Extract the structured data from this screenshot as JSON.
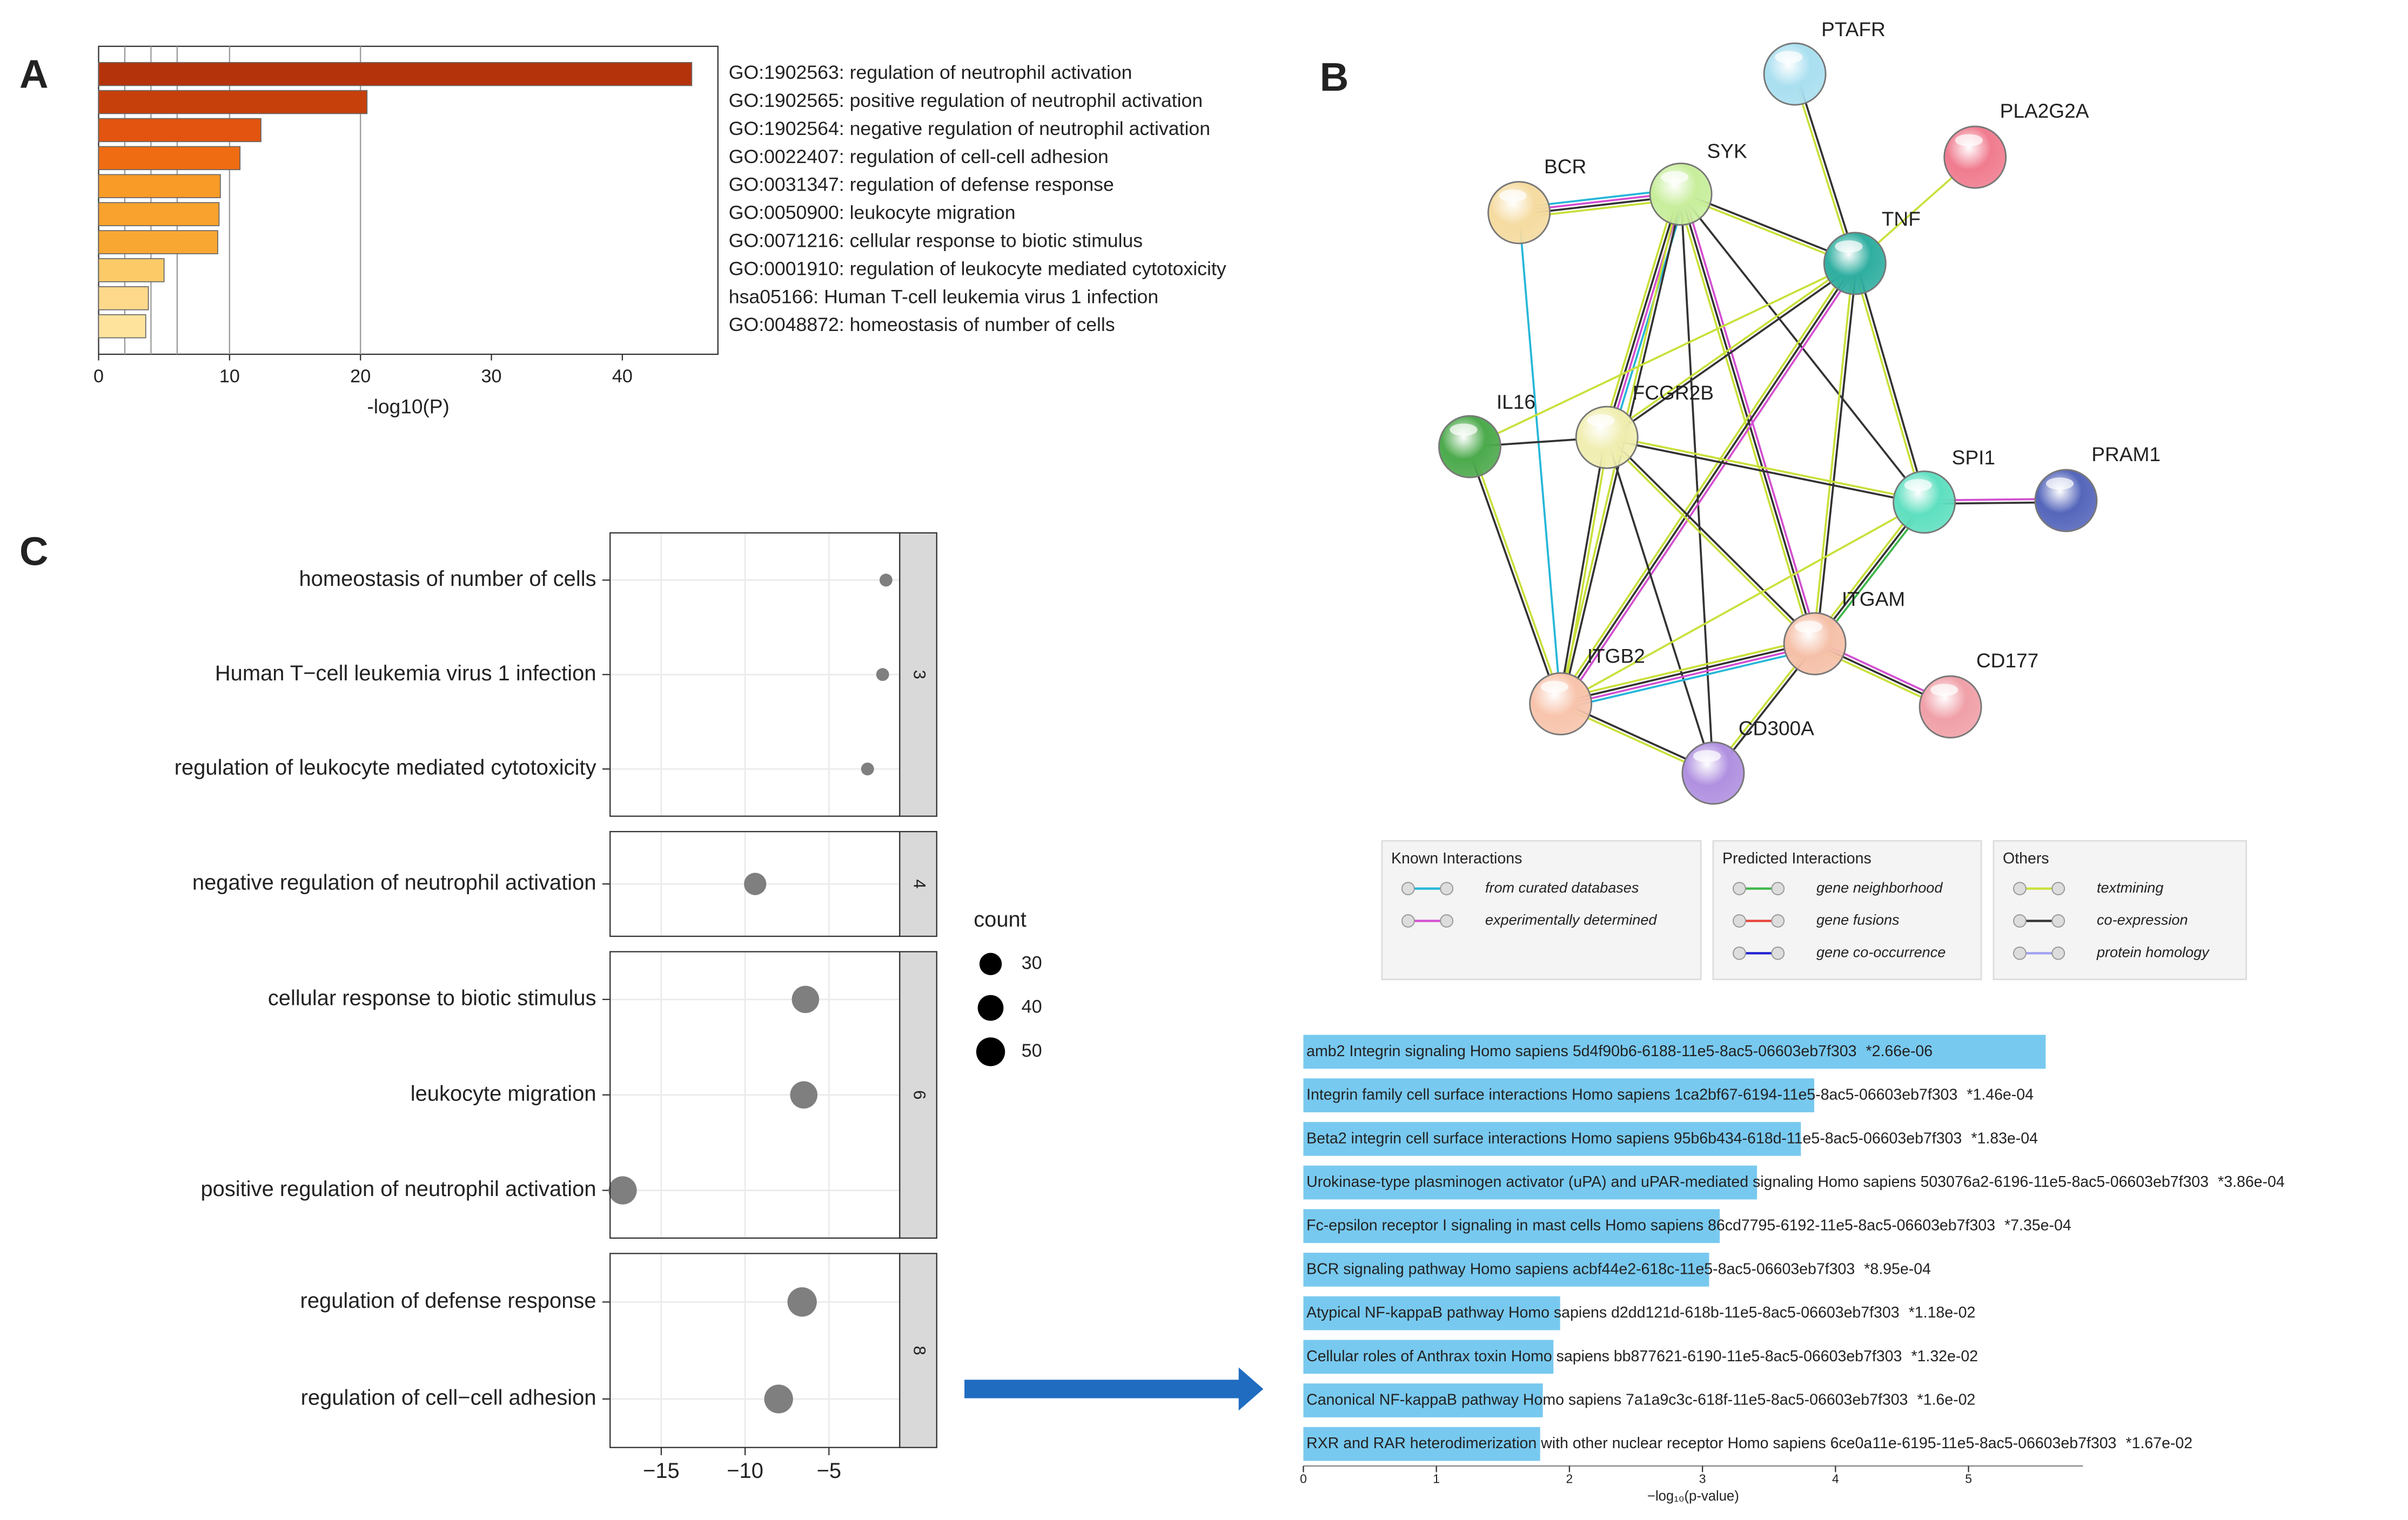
{
  "chart_data": [
    {
      "type": "bar",
      "panel_label": "A",
      "categories": [
        "GO:1902563: regulation of neutrophil activation",
        "GO:1902565: positive regulation of neutrophil activation",
        "GO:1902564: negative regulation of neutrophil activation",
        "GO:0022407: regulation of cell-cell adhesion",
        "GO:0031347: regulation of defense response",
        "GO:0050900: leukocyte migration",
        "GO:0071216: cellular response to biotic stimulus",
        "GO:0001910: regulation of leukocyte mediated cytotoxicity",
        "hsa05166: Human T-cell leukemia virus 1 infection",
        "GO:0048872: homeostasis of number of cells"
      ],
      "values": [
        45.3,
        20.5,
        12.4,
        10.8,
        9.3,
        9.2,
        9.1,
        5.0,
        3.8,
        3.6
      ],
      "colors": [
        "#b5330b",
        "#c6400c",
        "#e2540f",
        "#f06c12",
        "#f89b27",
        "#f9a22e",
        "#f9a733",
        "#fdca68",
        "#fed98c",
        "#fee39d"
      ],
      "xlabel": "-log10(P)",
      "xlim": [
        0,
        47.3
      ],
      "xticks": [
        0,
        10,
        20,
        30,
        40
      ],
      "reference_lines": [
        2,
        4,
        6,
        10,
        20
      ]
    },
    {
      "type": "network",
      "panel_label": "B",
      "nodes": [
        "PTAFR",
        "PLA2G2A",
        "BCR",
        "SYK",
        "TNF",
        "IL16",
        "FCGR2B",
        "SPI1",
        "PRAM1",
        "ITGAM",
        "CD177",
        "ITGB2",
        "CD300A"
      ],
      "colors": [
        "#a9dff0",
        "#f07c8f",
        "#f5dba0",
        "#c8ee9c",
        "#2faea0",
        "#4caa4c",
        "#f0eeb0",
        "#5fe0c0",
        "#5566bb",
        "#f5c0a8",
        "#f0a0a8",
        "#f8c4ac",
        "#b090e0"
      ],
      "legend": [
        {
          "title": "Known Interactions",
          "items": [
            {
              "label": "from curated databases",
              "color": "#26b6d8"
            },
            {
              "label": "experimentally determined",
              "color": "#d34fd0"
            }
          ]
        },
        {
          "title": "Predicted Interactions",
          "items": [
            {
              "label": "gene neighborhood",
              "color": "#3db54a"
            },
            {
              "label": "gene fusions",
              "color": "#e8443a"
            },
            {
              "label": "gene co-occurrence",
              "color": "#2020d0"
            }
          ]
        },
        {
          "title": "Others",
          "items": [
            {
              "label": "textmining",
              "color": "#c9e03a"
            },
            {
              "label": "co-expression",
              "color": "#333333"
            },
            {
              "label": "protein homology",
              "color": "#a0a0f0"
            }
          ]
        }
      ]
    },
    {
      "type": "dot",
      "panel_label": "C",
      "color": "#7f7f7f",
      "facets": [
        {
          "name": "3",
          "categories": [
            "homeostasis of number of cells",
            "Human T−cell leukemia virus 1 infection",
            "regulation of leukocyte mediated cytotoxicity"
          ],
          "values": [
            -1.6,
            -1.8,
            -2.7
          ],
          "sizes": [
            10,
            10,
            10
          ]
        },
        {
          "name": "4",
          "categories": [
            "negative regulation of neutrophil activation"
          ],
          "values": [
            -9.4
          ],
          "sizes": [
            30
          ]
        },
        {
          "name": "6",
          "categories": [
            "cellular response to biotic stimulus",
            "leukocyte migration",
            "positive regulation of neutrophil activation"
          ],
          "values": [
            -6.4,
            -6.5,
            -17.3
          ],
          "sizes": [
            45,
            45,
            48
          ]
        },
        {
          "name": "8",
          "categories": [
            "regulation of defense response",
            "regulation of cell−cell adhesion"
          ],
          "values": [
            -6.6,
            -8.0
          ],
          "sizes": [
            52,
            50
          ]
        }
      ],
      "xlim": [
        -18.05,
        -0.78
      ],
      "xticks": [
        {
          "value": -15,
          "label": "−15"
        },
        {
          "value": -10,
          "label": "−10"
        },
        {
          "value": -5,
          "label": "−5"
        }
      ],
      "size_legend": {
        "title": "count",
        "values": [
          30,
          40,
          50
        ]
      }
    },
    {
      "type": "bar",
      "color": "#78c9ef",
      "categories": [
        "amb2 Integrin signaling Homo sapiens 5d4f90b6-6188-11e5-8ac5-06603eb7f303",
        "Integrin family cell surface interactions Homo sapiens 1ca2bf67-6194-11e5-8ac5-06603eb7f303",
        "Beta2 integrin cell surface interactions Homo sapiens 95b6b434-618d-11e5-8ac5-06603eb7f303",
        "Urokinase-type plasminogen activator (uPA) and uPAR-mediated signaling Homo sapiens 503076a2-6196-11e5-8ac5-06603eb7f303",
        "Fc-epsilon receptor I signaling in mast cells Homo sapiens 86cd7795-6192-11e5-8ac5-06603eb7f303",
        "BCR signaling pathway Homo sapiens acbf44e2-618c-11e5-8ac5-06603eb7f303",
        "Atypical NF-kappaB pathway Homo sapiens d2dd121d-618b-11e5-8ac5-06603eb7f303",
        "Cellular roles of Anthrax toxin Homo sapiens bb877621-6190-11e5-8ac5-06603eb7f303",
        "Canonical NF-kappaB pathway Homo sapiens 7a1a9c3c-618f-11e5-8ac5-06603eb7f303",
        "RXR and RAR heterodimerization with other nuclear receptor Homo sapiens 6ce0a11e-6195-11e5-8ac5-06603eb7f303"
      ],
      "annotations": [
        "*2.66e-06",
        "*1.46e-04",
        "*1.83e-04",
        "*3.86e-04",
        "*7.35e-04",
        "*8.95e-04",
        "*1.18e-02",
        "*1.32e-02",
        "*1.6e-02",
        "*1.67e-02"
      ],
      "values": [
        5.58,
        3.84,
        3.74,
        3.41,
        3.13,
        3.05,
        1.93,
        1.88,
        1.8,
        1.78
      ],
      "xlabel": "−log₁₀(p-value)",
      "xlim": [
        0,
        5.86
      ],
      "xticks": [
        0,
        1,
        2,
        3,
        4,
        5
      ]
    }
  ]
}
